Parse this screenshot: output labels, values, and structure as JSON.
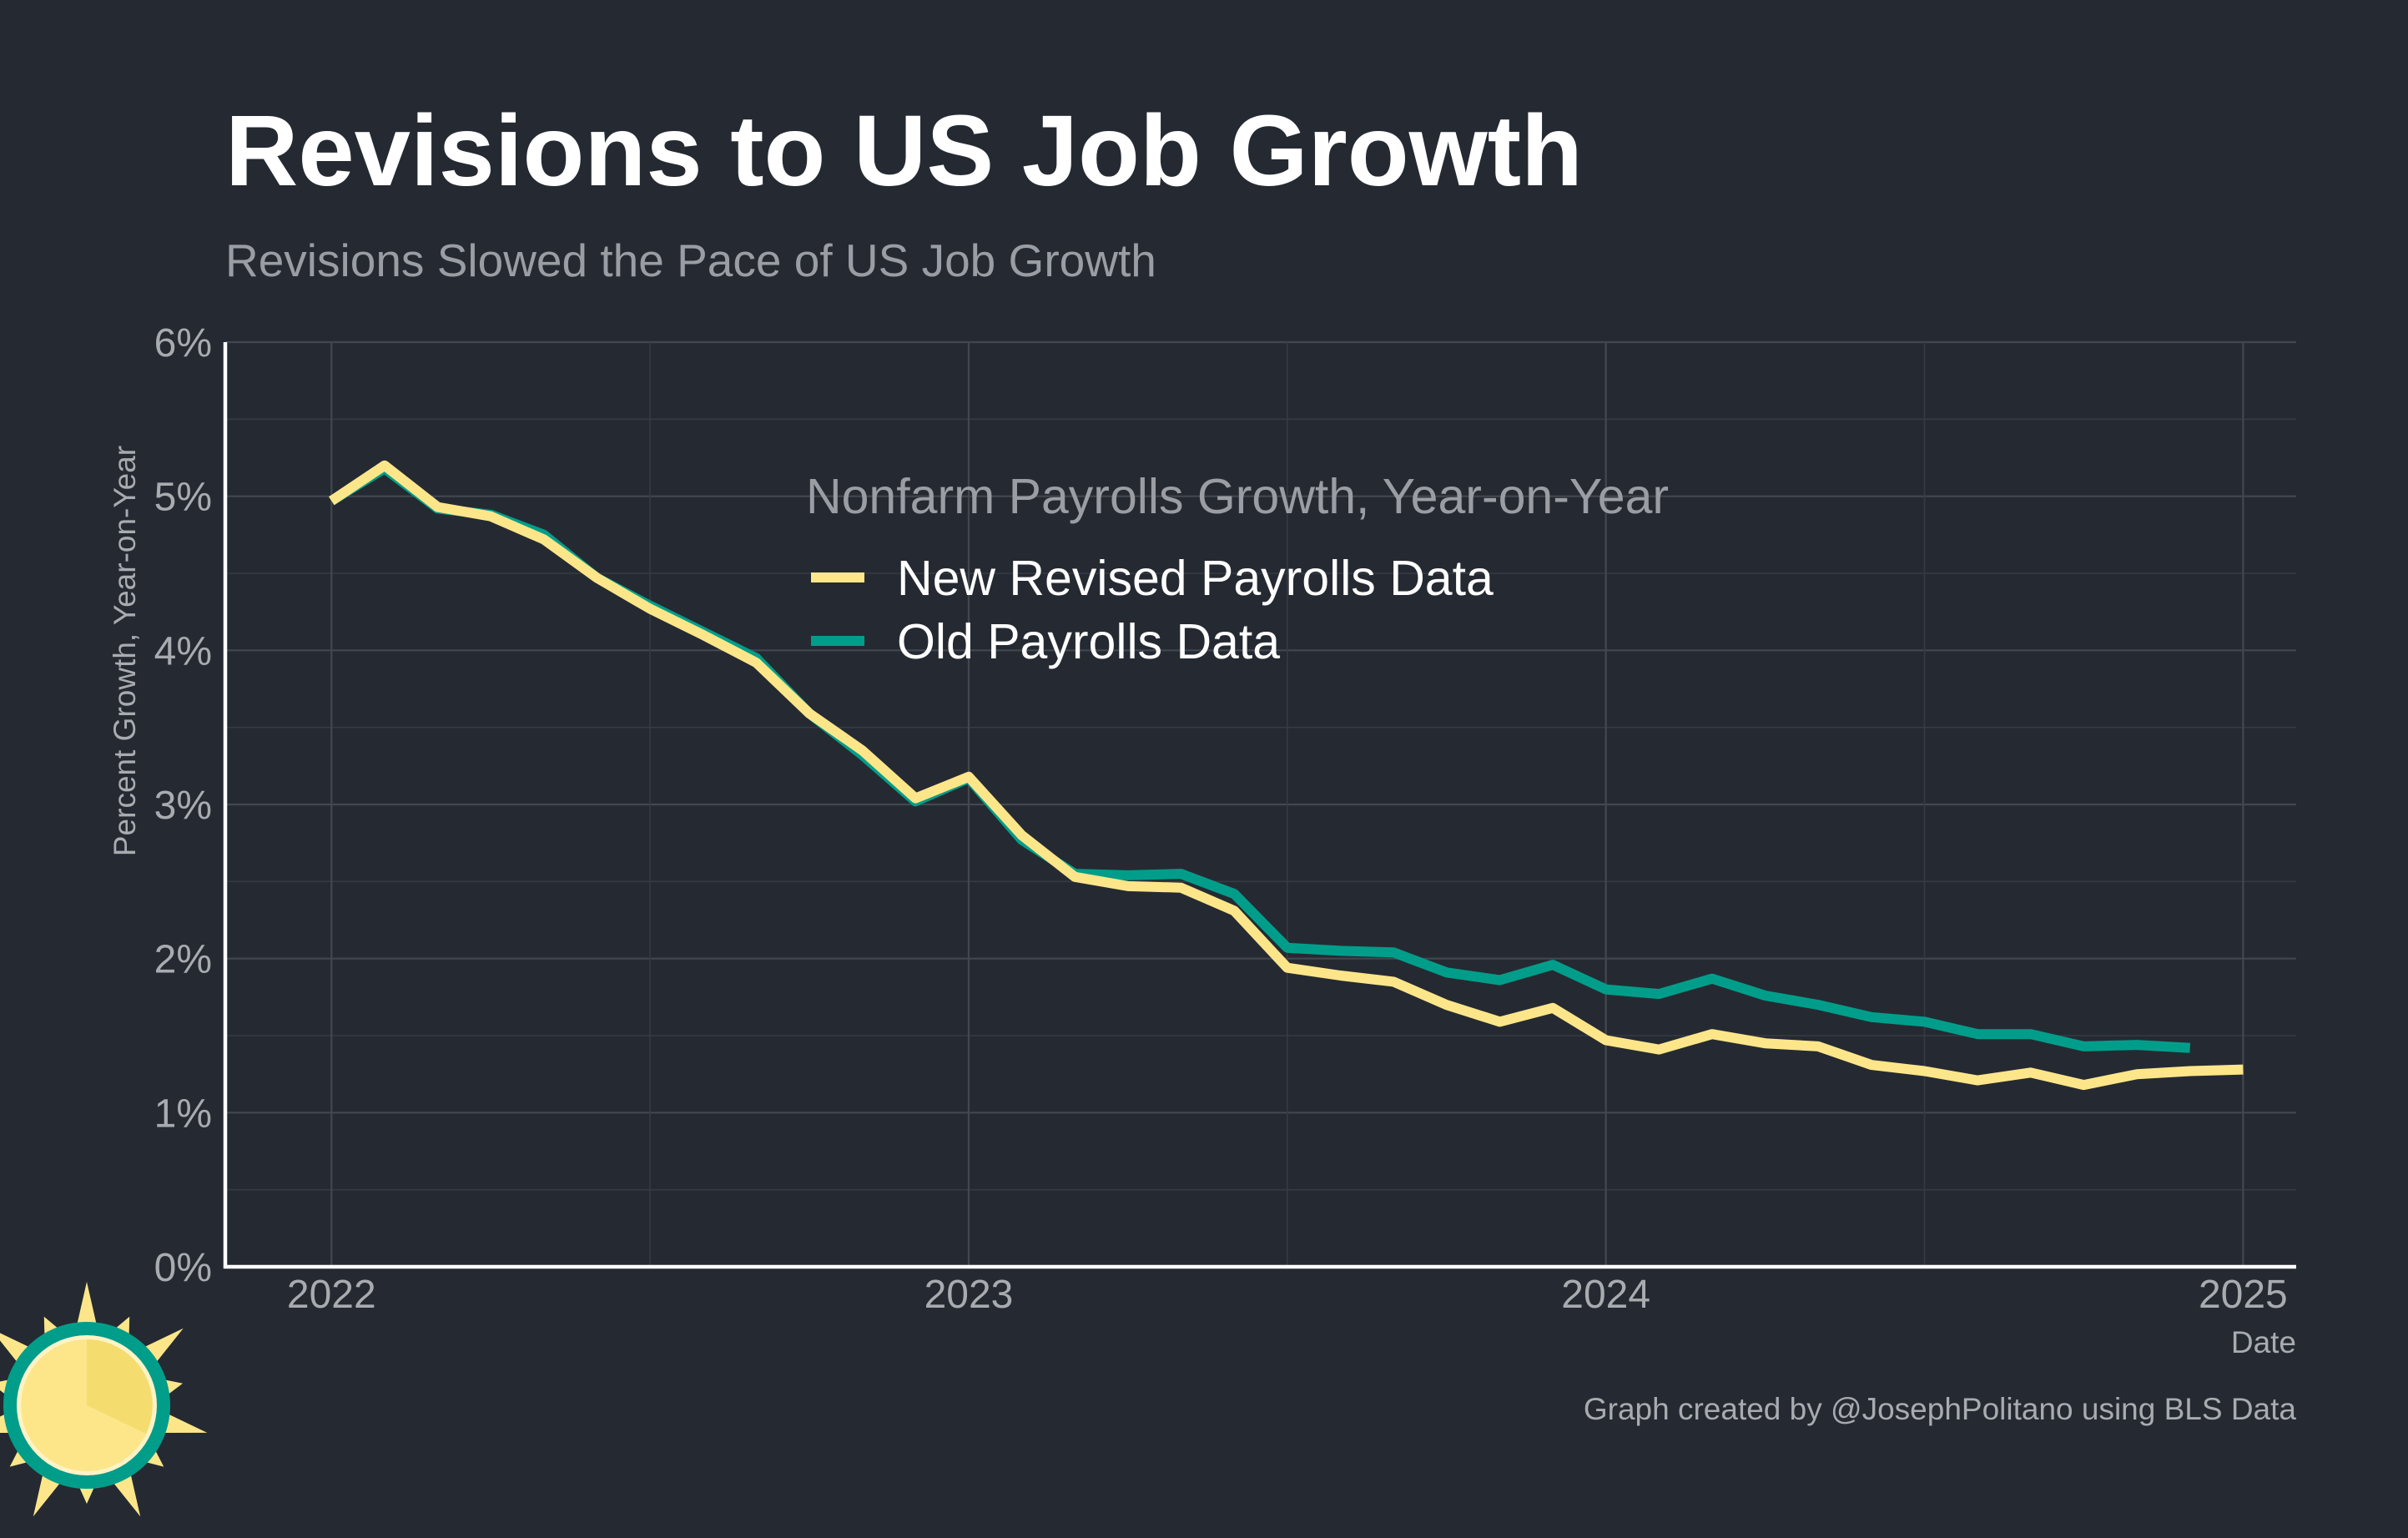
{
  "title": "Revisions to US Job Growth",
  "subtitle": "Revisions Slowed the Pace of US Job Growth",
  "caption": "Graph created by @JosephPolitano using BLS Data",
  "colors": {
    "background": "#252a32",
    "new_series": "#fde68a",
    "old_series": "#009e8a"
  },
  "logo_icon": "sun-icon",
  "chart_data": {
    "type": "line",
    "xlabel": "Date",
    "ylabel": "Percent Growth, Year-on-Year",
    "xlim": [
      "2021-11",
      "2025-02"
    ],
    "ylim": [
      0,
      6
    ],
    "x_ticks": [
      "2022",
      "2023",
      "2024",
      "2025"
    ],
    "y_ticks": [
      "0%",
      "1%",
      "2%",
      "3%",
      "4%",
      "5%",
      "6%"
    ],
    "grid": true,
    "legend": {
      "title": "Nonfarm Payrolls Growth, Year-on-Year",
      "position": "top-center"
    },
    "series": [
      {
        "name": "New Revised Payrolls Data",
        "color": "#fde68a",
        "x": [
          "2022-01",
          "2022-02",
          "2022-03",
          "2022-04",
          "2022-05",
          "2022-06",
          "2022-07",
          "2022-08",
          "2022-09",
          "2022-10",
          "2022-11",
          "2022-12",
          "2023-01",
          "2023-02",
          "2023-03",
          "2023-04",
          "2023-05",
          "2023-06",
          "2023-07",
          "2023-08",
          "2023-09",
          "2023-10",
          "2023-11",
          "2023-12",
          "2024-01",
          "2024-02",
          "2024-03",
          "2024-04",
          "2024-05",
          "2024-06",
          "2024-07",
          "2024-08",
          "2024-09",
          "2024-10",
          "2024-11",
          "2024-12",
          "2025-01"
        ],
        "values": [
          4.97,
          5.2,
          4.93,
          4.87,
          4.72,
          4.47,
          4.27,
          4.1,
          3.92,
          3.59,
          3.35,
          3.04,
          3.18,
          2.8,
          2.53,
          2.47,
          2.46,
          2.31,
          1.94,
          1.89,
          1.85,
          1.7,
          1.59,
          1.68,
          1.47,
          1.41,
          1.51,
          1.45,
          1.43,
          1.31,
          1.27,
          1.21,
          1.26,
          1.18,
          1.25,
          1.27,
          1.28
        ]
      },
      {
        "name": "Old Payrolls Data",
        "color": "#009e8a",
        "x": [
          "2022-01",
          "2022-02",
          "2022-03",
          "2022-04",
          "2022-05",
          "2022-06",
          "2022-07",
          "2022-08",
          "2022-09",
          "2022-10",
          "2022-11",
          "2022-12",
          "2023-01",
          "2023-02",
          "2023-03",
          "2023-04",
          "2023-05",
          "2023-06",
          "2023-07",
          "2023-08",
          "2023-09",
          "2023-10",
          "2023-11",
          "2023-12",
          "2024-01",
          "2024-02",
          "2024-03",
          "2024-04",
          "2024-05",
          "2024-06",
          "2024-07",
          "2024-08",
          "2024-09",
          "2024-10",
          "2024-11",
          "2024-12"
        ],
        "values": [
          4.97,
          5.18,
          4.92,
          4.88,
          4.75,
          4.47,
          4.29,
          4.12,
          3.95,
          3.59,
          3.32,
          3.02,
          3.17,
          2.77,
          2.55,
          2.54,
          2.55,
          2.42,
          2.07,
          2.05,
          2.04,
          1.91,
          1.86,
          1.96,
          1.8,
          1.77,
          1.87,
          1.76,
          1.7,
          1.62,
          1.59,
          1.51,
          1.51,
          1.43,
          1.44,
          1.42
        ]
      }
    ]
  }
}
